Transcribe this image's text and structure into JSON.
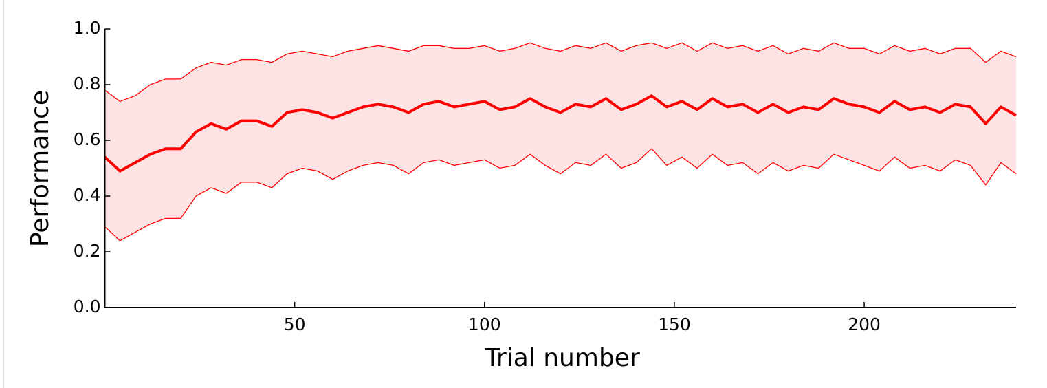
{
  "chart_data": {
    "type": "line",
    "xlabel": "Trial number",
    "ylabel": "Performance",
    "x": [
      0,
      4,
      8,
      12,
      16,
      20,
      24,
      28,
      32,
      36,
      40,
      44,
      48,
      52,
      56,
      60,
      64,
      68,
      72,
      76,
      80,
      84,
      88,
      92,
      96,
      100,
      104,
      108,
      112,
      116,
      120,
      124,
      128,
      132,
      136,
      140,
      144,
      148,
      152,
      156,
      160,
      164,
      168,
      172,
      176,
      180,
      184,
      188,
      192,
      196,
      200,
      204,
      208,
      212,
      216,
      220,
      224,
      228,
      232,
      236,
      240
    ],
    "series": [
      {
        "color": "#ff0000",
        "values": [
          0.54,
          0.49,
          0.52,
          0.55,
          0.57,
          0.57,
          0.63,
          0.66,
          0.64,
          0.67,
          0.67,
          0.65,
          0.7,
          0.71,
          0.7,
          0.68,
          0.7,
          0.72,
          0.73,
          0.72,
          0.7,
          0.73,
          0.74,
          0.72,
          0.73,
          0.74,
          0.71,
          0.72,
          0.75,
          0.72,
          0.7,
          0.73,
          0.72,
          0.75,
          0.71,
          0.73,
          0.76,
          0.72,
          0.74,
          0.71,
          0.75,
          0.72,
          0.73,
          0.7,
          0.73,
          0.7,
          0.72,
          0.71,
          0.75,
          0.73,
          0.72,
          0.7,
          0.74,
          0.71,
          0.72,
          0.7,
          0.73,
          0.72,
          0.66,
          0.72,
          0.69
        ]
      }
    ],
    "band": {
      "color": "#ff0000",
      "fill": "#fde3e3",
      "upper": [
        0.78,
        0.74,
        0.76,
        0.8,
        0.82,
        0.82,
        0.86,
        0.88,
        0.87,
        0.89,
        0.89,
        0.88,
        0.91,
        0.92,
        0.91,
        0.9,
        0.92,
        0.93,
        0.94,
        0.93,
        0.92,
        0.94,
        0.94,
        0.93,
        0.93,
        0.94,
        0.92,
        0.93,
        0.95,
        0.93,
        0.92,
        0.94,
        0.93,
        0.95,
        0.92,
        0.94,
        0.95,
        0.93,
        0.95,
        0.92,
        0.95,
        0.93,
        0.94,
        0.92,
        0.94,
        0.91,
        0.93,
        0.92,
        0.95,
        0.93,
        0.93,
        0.91,
        0.94,
        0.92,
        0.93,
        0.91,
        0.93,
        0.93,
        0.88,
        0.92,
        0.9
      ],
      "lower": [
        0.29,
        0.24,
        0.27,
        0.3,
        0.32,
        0.32,
        0.4,
        0.43,
        0.41,
        0.45,
        0.45,
        0.43,
        0.48,
        0.5,
        0.49,
        0.46,
        0.49,
        0.51,
        0.52,
        0.51,
        0.48,
        0.52,
        0.53,
        0.51,
        0.52,
        0.53,
        0.5,
        0.51,
        0.55,
        0.51,
        0.48,
        0.52,
        0.51,
        0.55,
        0.5,
        0.52,
        0.57,
        0.51,
        0.54,
        0.5,
        0.55,
        0.51,
        0.52,
        0.48,
        0.52,
        0.49,
        0.51,
        0.5,
        0.55,
        0.53,
        0.51,
        0.49,
        0.54,
        0.5,
        0.51,
        0.49,
        0.53,
        0.51,
        0.44,
        0.52,
        0.48
      ]
    },
    "xlim": [
      0,
      240
    ],
    "xticks": [
      50,
      100,
      150,
      200
    ],
    "ylim": [
      0,
      1
    ],
    "yticks": [
      {
        "value": 0,
        "label": "0.0"
      },
      {
        "value": 0.2,
        "label": "0.2"
      },
      {
        "value": 0.4,
        "label": "0.4"
      },
      {
        "value": 0.6,
        "label": "0.6"
      },
      {
        "value": 0.8,
        "label": "0.8"
      },
      {
        "value": 1,
        "label": "1.0"
      }
    ],
    "grid": false
  }
}
